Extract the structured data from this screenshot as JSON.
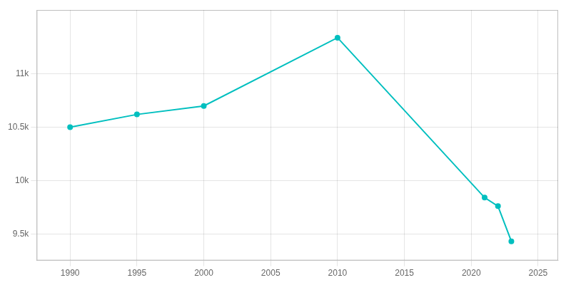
{
  "chart_data": {
    "type": "line",
    "x": [
      1990,
      1995,
      2000,
      2010,
      2021,
      2022,
      2023
    ],
    "values": [
      10500,
      10620,
      10700,
      11340,
      9840,
      9760,
      9430
    ],
    "color": "#00BFBF",
    "marker": "circle",
    "line_style": "solid",
    "xlim": [
      1987.5,
      2026.5
    ],
    "xticks": [
      1990,
      1995,
      2000,
      2005,
      2010,
      2015,
      2020,
      2025
    ],
    "ylim": [
      9250,
      11600
    ],
    "yticks": [
      {
        "value": 9500,
        "label": "9.5k"
      },
      {
        "value": 10000,
        "label": "10k"
      },
      {
        "value": 10500,
        "label": "10.5k"
      },
      {
        "value": 11000,
        "label": "11k"
      }
    ],
    "grid": true
  }
}
